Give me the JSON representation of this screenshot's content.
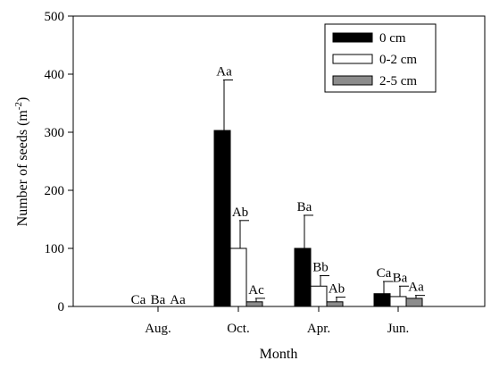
{
  "chart_data": {
    "type": "bar",
    "xlabel": "Month",
    "ylabel": "Number of seeds (m",
    "ylabel_sup": "-2",
    "ylabel_suffix": ")",
    "ylim": [
      0,
      500
    ],
    "yticks": [
      "0",
      "100",
      "200",
      "300",
      "400",
      "500"
    ],
    "yticks_values": [
      0,
      100,
      200,
      300,
      400,
      500
    ],
    "categories": [
      "Aug.",
      "Oct.",
      "Apr.",
      "Jun."
    ],
    "legend_position": "top-right",
    "series": [
      {
        "name": "0 cm",
        "color": "#000000",
        "values": [
          0,
          303,
          100,
          22
        ],
        "errors": [
          0,
          87,
          57,
          21
        ],
        "labels": [
          "Ca",
          "Aa",
          "Ba",
          "Ca"
        ]
      },
      {
        "name": "0-2 cm",
        "color": "#ffffff",
        "values": [
          0,
          100,
          35,
          17
        ],
        "errors": [
          0,
          48,
          18,
          18
        ],
        "labels": [
          "Ba",
          "Ab",
          "Bb",
          "Ba"
        ]
      },
      {
        "name": "2-5 cm",
        "color": "#8c8c8c",
        "values": [
          0,
          8,
          8,
          14
        ],
        "errors": [
          0,
          6,
          8,
          5
        ],
        "labels": [
          "Aa",
          "Ac",
          "Ab",
          "Aa"
        ]
      }
    ]
  }
}
